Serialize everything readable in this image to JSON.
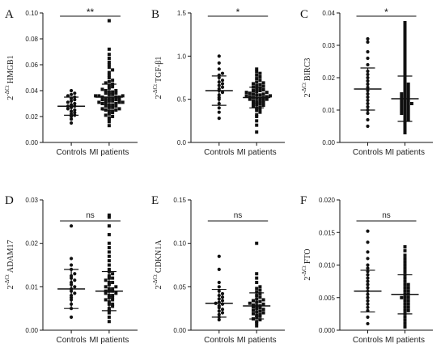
{
  "chart_data": [
    {
      "panel": "A",
      "type": "scatter",
      "ylabel_base": "2",
      "ylabel_sup": "-ΔCt",
      "ylabel_gene": "HMGB1",
      "ylim": [
        0,
        0.1
      ],
      "yticks": [
        "0.00",
        "0.02",
        "0.04",
        "0.06",
        "0.08",
        "0.10"
      ],
      "categories": [
        "Controls",
        "MI patients"
      ],
      "significance": "**",
      "series": [
        {
          "category": "Controls",
          "mean": 0.028,
          "sd": 0.007,
          "values": [
            0.015,
            0.018,
            0.02,
            0.021,
            0.022,
            0.023,
            0.024,
            0.025,
            0.026,
            0.027,
            0.028,
            0.028,
            0.029,
            0.03,
            0.031,
            0.032,
            0.033,
            0.034,
            0.035,
            0.036,
            0.037,
            0.038,
            0.04
          ]
        },
        {
          "category": "MI patients",
          "mean": 0.035,
          "sd": 0.01,
          "values": [
            0.013,
            0.016,
            0.018,
            0.019,
            0.02,
            0.021,
            0.022,
            0.023,
            0.024,
            0.024,
            0.025,
            0.025,
            0.026,
            0.026,
            0.027,
            0.027,
            0.028,
            0.028,
            0.029,
            0.029,
            0.03,
            0.03,
            0.03,
            0.031,
            0.031,
            0.031,
            0.032,
            0.032,
            0.032,
            0.033,
            0.033,
            0.033,
            0.034,
            0.034,
            0.034,
            0.035,
            0.035,
            0.035,
            0.036,
            0.036,
            0.036,
            0.037,
            0.037,
            0.038,
            0.038,
            0.039,
            0.039,
            0.04,
            0.04,
            0.041,
            0.042,
            0.043,
            0.044,
            0.045,
            0.046,
            0.047,
            0.048,
            0.05,
            0.052,
            0.054,
            0.056,
            0.058,
            0.06,
            0.062,
            0.065,
            0.068,
            0.072,
            0.094
          ]
        }
      ]
    },
    {
      "panel": "B",
      "type": "scatter",
      "ylabel_base": "2",
      "ylabel_sup": "-ΔCt",
      "ylabel_gene": "TGF-β1",
      "ylim": [
        0,
        1.5
      ],
      "yticks": [
        "0.0",
        "0.5",
        "1.0",
        "1.5"
      ],
      "categories": [
        "Controls",
        "MI patients"
      ],
      "significance": "*",
      "series": [
        {
          "category": "Controls",
          "mean": 0.6,
          "sd": 0.17,
          "values": [
            0.28,
            0.35,
            0.4,
            0.45,
            0.5,
            0.52,
            0.55,
            0.58,
            0.6,
            0.62,
            0.64,
            0.66,
            0.68,
            0.7,
            0.72,
            0.75,
            0.78,
            0.8,
            0.85,
            0.92,
            1.0
          ]
        },
        {
          "category": "MI patients",
          "mean": 0.52,
          "sd": 0.12,
          "values": [
            0.12,
            0.2,
            0.25,
            0.3,
            0.32,
            0.35,
            0.37,
            0.38,
            0.4,
            0.41,
            0.42,
            0.43,
            0.44,
            0.45,
            0.45,
            0.46,
            0.47,
            0.48,
            0.48,
            0.49,
            0.5,
            0.5,
            0.51,
            0.51,
            0.52,
            0.52,
            0.53,
            0.53,
            0.54,
            0.54,
            0.55,
            0.55,
            0.56,
            0.56,
            0.57,
            0.58,
            0.58,
            0.59,
            0.6,
            0.6,
            0.61,
            0.62,
            0.63,
            0.64,
            0.65,
            0.66,
            0.67,
            0.68,
            0.69,
            0.7,
            0.72,
            0.74,
            0.76,
            0.78,
            0.8,
            0.82,
            0.85
          ]
        }
      ]
    },
    {
      "panel": "C",
      "type": "scatter",
      "ylabel_base": "2",
      "ylabel_sup": "-ΔCt",
      "ylabel_gene": "BIRC3",
      "ylim": [
        0,
        0.04
      ],
      "yticks": [
        "0.00",
        "0.01",
        "0.02",
        "0.03",
        "0.04"
      ],
      "categories": [
        "Controls",
        "MI patients"
      ],
      "significance": "*",
      "series": [
        {
          "category": "Controls",
          "mean": 0.0165,
          "sd": 0.0065,
          "values": [
            0.005,
            0.007,
            0.009,
            0.01,
            0.011,
            0.012,
            0.013,
            0.014,
            0.015,
            0.016,
            0.017,
            0.018,
            0.019,
            0.02,
            0.021,
            0.022,
            0.024,
            0.026,
            0.028,
            0.031,
            0.032
          ]
        },
        {
          "category": "MI patients",
          "mean": 0.0135,
          "sd": 0.007,
          "values": [
            0.003,
            0.004,
            0.005,
            0.006,
            0.007,
            0.007,
            0.008,
            0.008,
            0.009,
            0.009,
            0.009,
            0.01,
            0.01,
            0.01,
            0.011,
            0.011,
            0.011,
            0.012,
            0.012,
            0.012,
            0.012,
            0.013,
            0.013,
            0.013,
            0.014,
            0.014,
            0.014,
            0.015,
            0.015,
            0.015,
            0.016,
            0.016,
            0.017,
            0.017,
            0.018,
            0.018,
            0.019,
            0.02,
            0.021,
            0.022,
            0.023,
            0.024,
            0.025,
            0.026,
            0.027,
            0.028,
            0.029,
            0.03,
            0.031,
            0.032,
            0.033,
            0.034,
            0.035,
            0.036,
            0.037
          ]
        }
      ]
    },
    {
      "panel": "D",
      "type": "scatter",
      "ylabel_base": "2",
      "ylabel_sup": "-ΔCt",
      "ylabel_gene": "ADAM17",
      "ylim": [
        0,
        0.03
      ],
      "yticks": [
        "0.00",
        "0.01",
        "0.02",
        "0.03"
      ],
      "categories": [
        "Controls",
        "MI patients"
      ],
      "significance": "ns",
      "series": [
        {
          "category": "Controls",
          "mean": 0.0095,
          "sd": 0.0045,
          "values": [
            0.003,
            0.005,
            0.006,
            0.007,
            0.0075,
            0.008,
            0.0085,
            0.009,
            0.0095,
            0.01,
            0.0105,
            0.011,
            0.0115,
            0.012,
            0.0125,
            0.013,
            0.014,
            0.015,
            0.0165,
            0.024
          ]
        },
        {
          "category": "MI patients",
          "mean": 0.009,
          "sd": 0.0045,
          "values": [
            0.002,
            0.003,
            0.004,
            0.0045,
            0.005,
            0.0055,
            0.006,
            0.006,
            0.0065,
            0.007,
            0.007,
            0.0075,
            0.0075,
            0.008,
            0.008,
            0.0085,
            0.0085,
            0.009,
            0.009,
            0.009,
            0.0095,
            0.0095,
            0.01,
            0.01,
            0.0105,
            0.011,
            0.011,
            0.0115,
            0.012,
            0.012,
            0.0125,
            0.013,
            0.0135,
            0.014,
            0.015,
            0.016,
            0.017,
            0.018,
            0.019,
            0.02,
            0.022,
            0.024,
            0.026,
            0.0265
          ]
        }
      ]
    },
    {
      "panel": "E",
      "type": "scatter",
      "ylabel_base": "2",
      "ylabel_sup": "-ΔCt",
      "ylabel_gene": "CDKN1A",
      "ylim": [
        0,
        0.15
      ],
      "yticks": [
        "0.00",
        "0.05",
        "0.10",
        "0.15"
      ],
      "categories": [
        "Controls",
        "MI patients"
      ],
      "significance": "ns",
      "series": [
        {
          "category": "Controls",
          "mean": 0.031,
          "sd": 0.016,
          "values": [
            0.012,
            0.015,
            0.018,
            0.02,
            0.022,
            0.024,
            0.026,
            0.028,
            0.03,
            0.031,
            0.032,
            0.034,
            0.036,
            0.038,
            0.04,
            0.042,
            0.045,
            0.05,
            0.055,
            0.07,
            0.085
          ]
        },
        {
          "category": "MI patients",
          "mean": 0.028,
          "sd": 0.015,
          "values": [
            0.005,
            0.008,
            0.01,
            0.012,
            0.013,
            0.015,
            0.016,
            0.017,
            0.018,
            0.019,
            0.02,
            0.021,
            0.022,
            0.023,
            0.024,
            0.025,
            0.026,
            0.027,
            0.028,
            0.028,
            0.029,
            0.03,
            0.031,
            0.032,
            0.033,
            0.034,
            0.035,
            0.036,
            0.038,
            0.04,
            0.042,
            0.044,
            0.046,
            0.048,
            0.05,
            0.055,
            0.06,
            0.065,
            0.1
          ]
        }
      ]
    },
    {
      "panel": "F",
      "type": "scatter",
      "ylabel_base": "2",
      "ylabel_sup": "-ΔCt",
      "ylabel_gene": "FTO",
      "ylim": [
        0,
        0.02
      ],
      "yticks": [
        "0.000",
        "0.005",
        "0.010",
        "0.015",
        "0.020"
      ],
      "categories": [
        "Controls",
        "MI patients"
      ],
      "significance": "ns",
      "series": [
        {
          "category": "Controls",
          "mean": 0.006,
          "sd": 0.0032,
          "values": [
            0.001,
            0.002,
            0.003,
            0.0035,
            0.004,
            0.0045,
            0.005,
            0.0055,
            0.006,
            0.0065,
            0.007,
            0.0075,
            0.008,
            0.0085,
            0.009,
            0.0095,
            0.01,
            0.011,
            0.012,
            0.0135,
            0.0152
          ]
        },
        {
          "category": "MI patients",
          "mean": 0.0055,
          "sd": 0.003,
          "values": [
            0.0005,
            0.001,
            0.0015,
            0.002,
            0.0025,
            0.003,
            0.003,
            0.0035,
            0.0035,
            0.004,
            0.004,
            0.0045,
            0.0045,
            0.005,
            0.005,
            0.005,
            0.0055,
            0.0055,
            0.006,
            0.006,
            0.0065,
            0.0065,
            0.007,
            0.007,
            0.0075,
            0.008,
            0.0085,
            0.009,
            0.0095,
            0.01,
            0.0105,
            0.011,
            0.0115,
            0.0122,
            0.0128
          ]
        }
      ]
    }
  ]
}
